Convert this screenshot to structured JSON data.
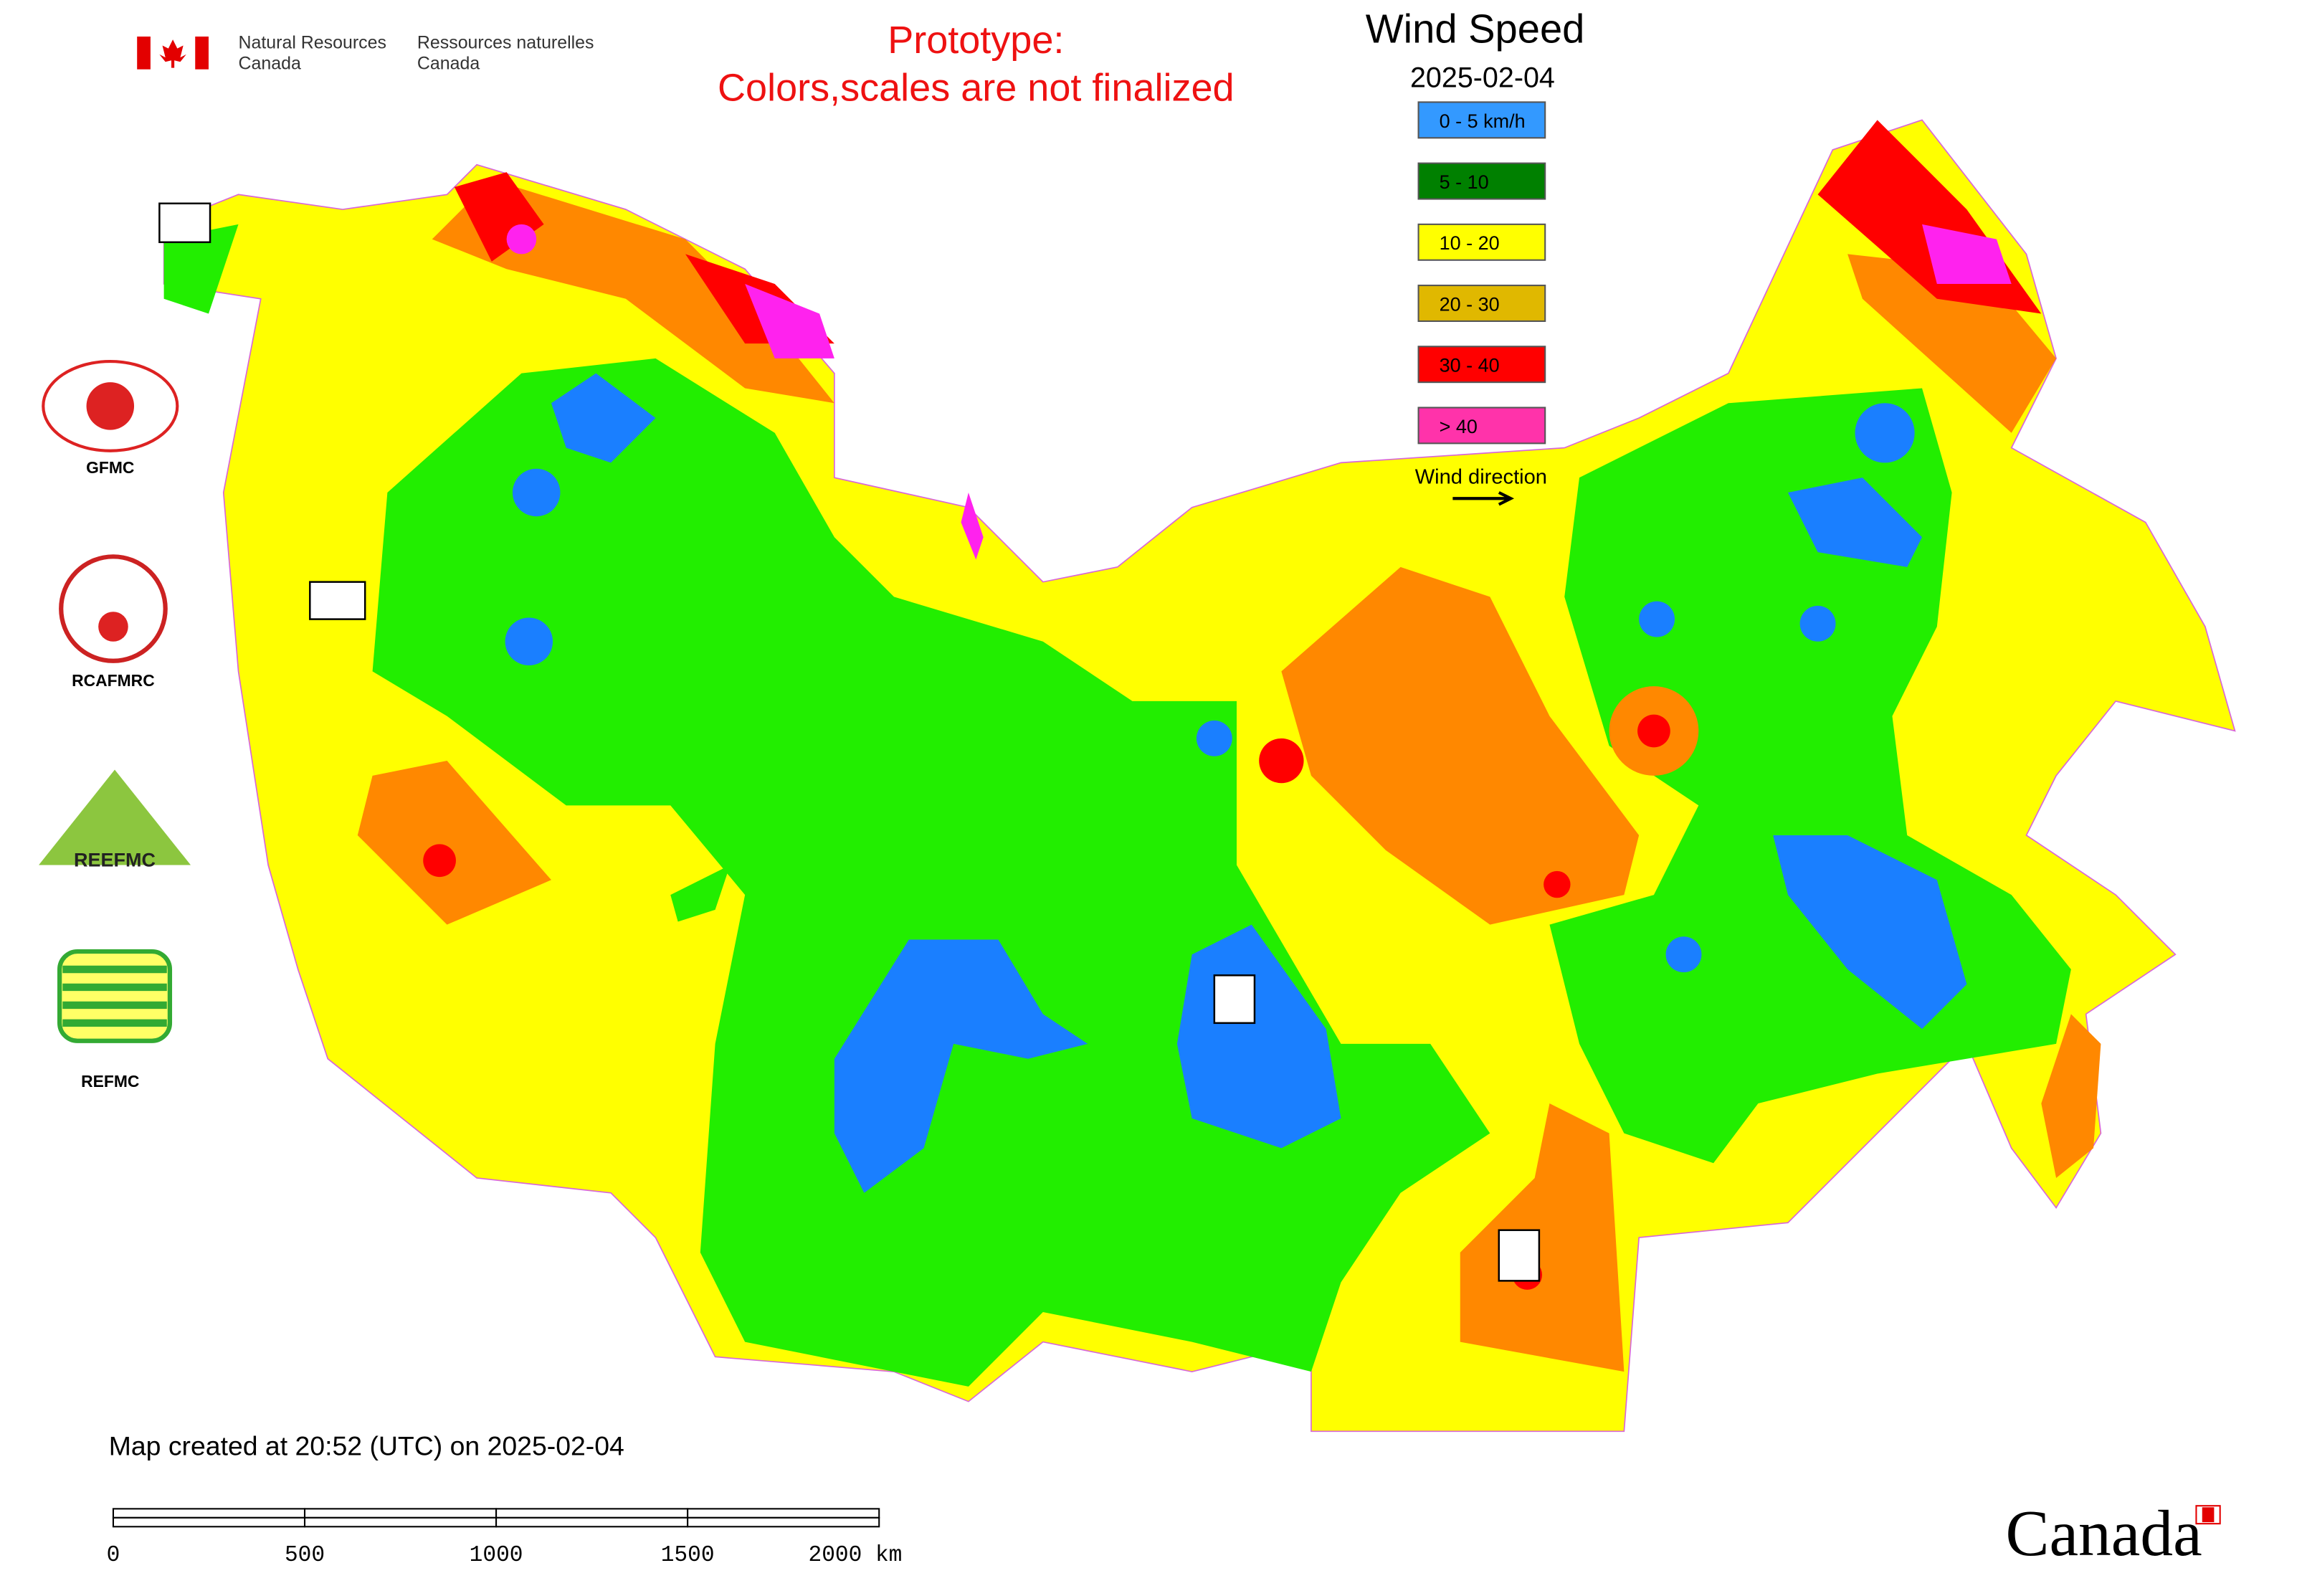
{
  "header": {
    "agency_en": [
      "Natural Resources",
      "Canada"
    ],
    "agency_fr": [
      "Ressources naturelles",
      "Canada"
    ],
    "notice": [
      "Prototype:",
      "Colors,scales are not finalized"
    ]
  },
  "legend": {
    "title": "Wind Speed",
    "date": "2025-02-04",
    "items": [
      {
        "label": "0 - 5 km/h",
        "color": "#3399ff"
      },
      {
        "label": "5 - 10",
        "color": "#008000"
      },
      {
        "label": "10 - 20",
        "color": "#ffff00"
      },
      {
        "label": "20 - 30",
        "color": "#e0b800"
      },
      {
        "label": "30 - 40",
        "color": "#ff0000"
      },
      {
        "label": "> 40",
        "color": "#ff33aa"
      }
    ],
    "direction_label": "Wind direction"
  },
  "logos": {
    "labels": [
      "GFMC",
      "RCAFMRC",
      "REFMC"
    ],
    "reefmc_text": "REEFMC"
  },
  "footer": {
    "created": "Map created at 20:52 (UTC) on 2025-02-04",
    "scale_labels": [
      "0",
      "500",
      "1000",
      "1500",
      "2000 km"
    ],
    "wordmark": "Canada"
  }
}
